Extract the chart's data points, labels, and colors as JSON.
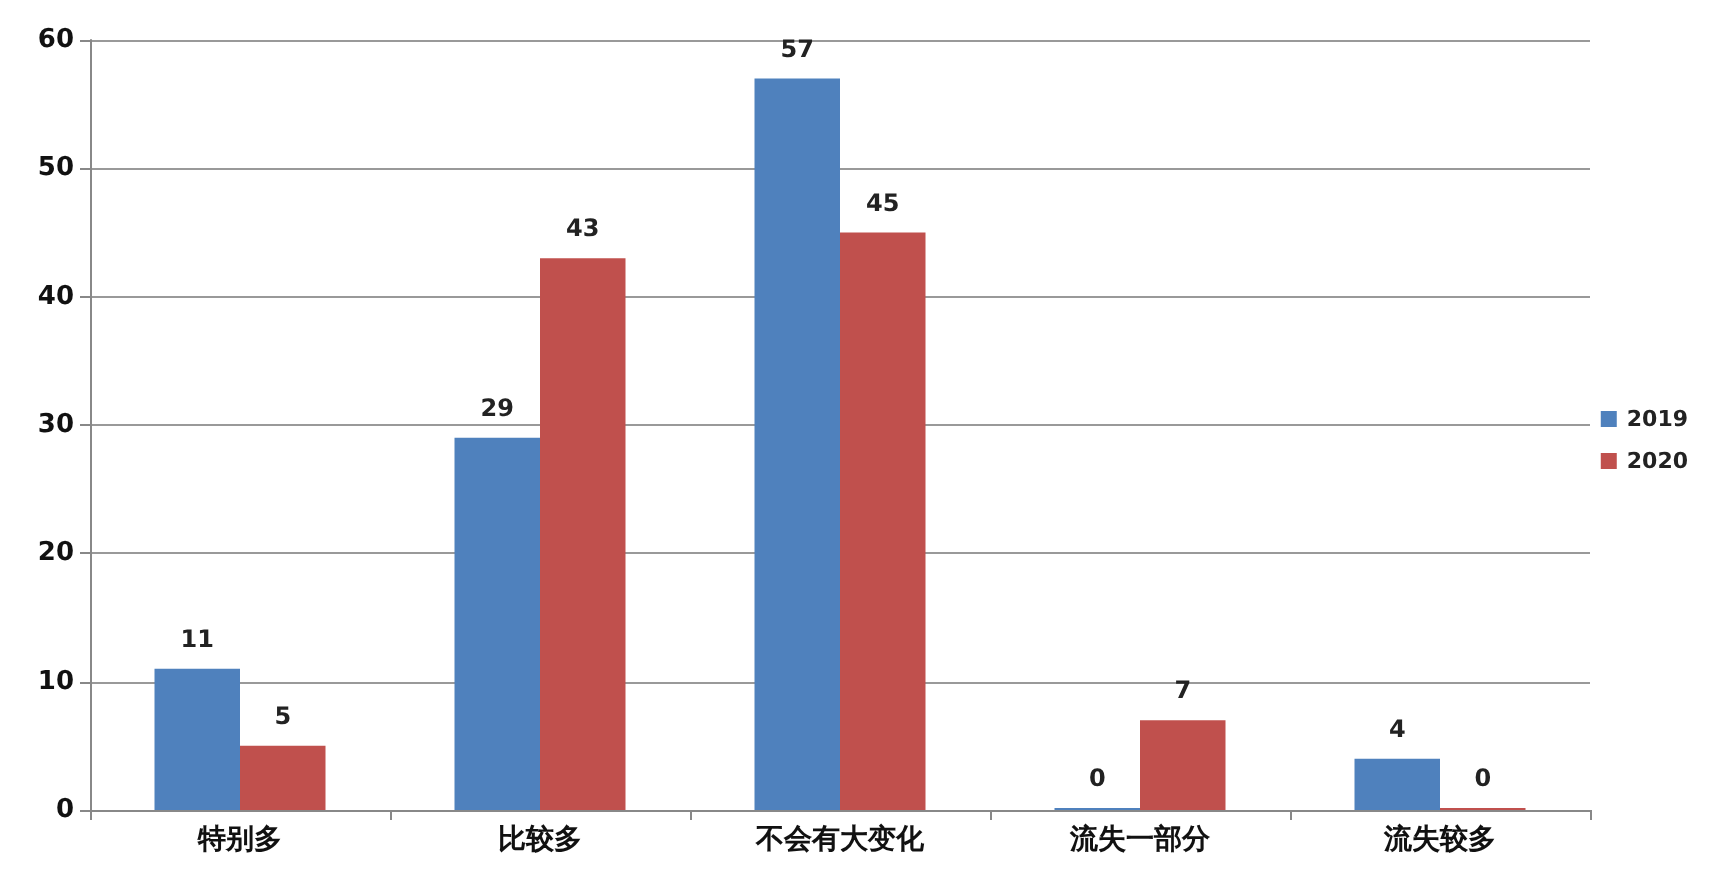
{
  "chart_data": {
    "type": "bar",
    "categories": [
      "特别多",
      "比较多",
      "不会有大变化",
      "流失一部分",
      "流失较多"
    ],
    "series": [
      {
        "name": "2019",
        "color": "#4f81bd",
        "values": [
          11,
          29,
          57,
          0,
          4
        ]
      },
      {
        "name": "2020",
        "color": "#c0504d",
        "values": [
          5,
          43,
          45,
          7,
          0
        ]
      }
    ],
    "ylim": [
      0,
      60
    ],
    "yticks": [
      0,
      10,
      20,
      30,
      40,
      50,
      60
    ],
    "grid": "y",
    "legend": "right",
    "data_labels": true
  }
}
